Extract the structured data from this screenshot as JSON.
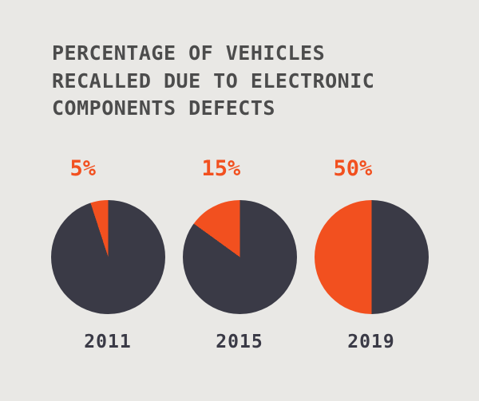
{
  "title_lines": [
    "PERCENTAGE OF VEHICLES",
    "RECALLED DUE TO ELECTRONIC",
    "COMPONENTS DEFECTS"
  ],
  "colors": {
    "background": "#e9e8e5",
    "title": "#4c4c4c",
    "accent": "#f2501f",
    "dark": "#3a3a46"
  },
  "chart_data": {
    "type": "pie",
    "title": "PERCENTAGE OF VEHICLES RECALLED DUE TO ELECTRONIC COMPONENTS DEFECTS",
    "legend_position": "none",
    "direction": "counterclockwise",
    "start_angle_deg": 0,
    "slice_colors": {
      "defect": "#f2501f",
      "other": "#3a3a46"
    },
    "series": [
      {
        "year": "2011",
        "label": "5%",
        "value": 5,
        "remainder": 95
      },
      {
        "year": "2015",
        "label": "15%",
        "value": 15,
        "remainder": 85
      },
      {
        "year": "2019",
        "label": "50%",
        "value": 50,
        "remainder": 50
      }
    ]
  }
}
